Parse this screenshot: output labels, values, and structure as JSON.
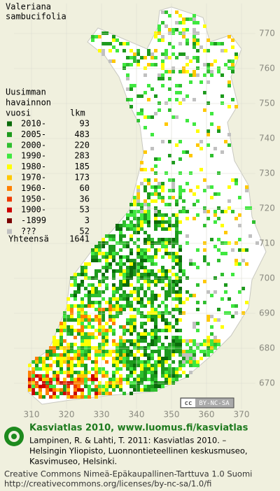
{
  "title": [
    "Valeriana",
    "sambucifolia"
  ],
  "legend": {
    "heading": [
      "Uusimman",
      "havainnon",
      "vuosi"
    ],
    "count_heading": "lkm",
    "rows": [
      {
        "label": "2010-",
        "count": 93,
        "color": "#0b6b0b"
      },
      {
        "label": "2005-",
        "count": 483,
        "color": "#1d9a1d"
      },
      {
        "label": "2000-",
        "count": 220,
        "color": "#2fbf2f"
      },
      {
        "label": "1990-",
        "count": 283,
        "color": "#3fe83f"
      },
      {
        "label": "1980-",
        "count": 185,
        "color": "#ffff00"
      },
      {
        "label": "1970-",
        "count": 173,
        "color": "#ffc800"
      },
      {
        "label": "1960-",
        "count": 60,
        "color": "#ff8000"
      },
      {
        "label": "1950-",
        "count": 36,
        "color": "#ee3a00"
      },
      {
        "label": "1900-",
        "count": 53,
        "color": "#cc0000"
      },
      {
        "label": "-1899",
        "count": 3,
        "color": "#7a0000"
      },
      {
        "label": "???",
        "count": 52,
        "color": "#c0c0c0"
      }
    ],
    "total_label": "Yhteensä",
    "total": 1641
  },
  "grid": {
    "y_labels": [
      770,
      760,
      750,
      740,
      730,
      720,
      710,
      700,
      690,
      680,
      670
    ],
    "x_labels": [
      310,
      320,
      330,
      340,
      350,
      360,
      370
    ]
  },
  "license_badge": [
    "cc",
    "BY-NC-SA"
  ],
  "footer": {
    "title": "Kasviatlas 2010, www.luomus.fi/kasviatlas",
    "citation": [
      "Lampinen, R. & Lahti, T. 2011: Kasviatlas 2010. –",
      "Helsingin Yliopisto, Luonnontieteellinen keskusmuseo,",
      "Kasvimuseo, Helsinki."
    ],
    "license": [
      "Creative Commons Nimeä-Epäkaupallinen-Tarttuva 1.0 Suomi",
      "http://creativecommons.org/licenses/by-nc-sa/1.0/fi"
    ]
  }
}
